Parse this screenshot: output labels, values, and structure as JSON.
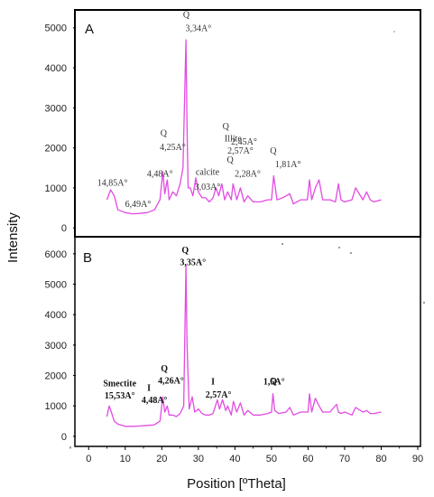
{
  "figure": {
    "ylabel": "Intensity",
    "xlabel": "Position [ºTheta]"
  },
  "chart_data": [
    {
      "type": "line",
      "panel": "A",
      "color": "#e24be2",
      "xlim": [
        -5,
        90
      ],
      "ylim": [
        -200,
        5400
      ],
      "yticks": [
        0,
        1000,
        2000,
        3000,
        4000,
        5000
      ],
      "x": [
        5,
        6,
        7,
        8,
        10,
        12,
        14,
        16,
        18,
        19.5,
        20.3,
        20.8,
        21.5,
        22,
        23,
        24,
        25,
        25.8,
        26.6,
        26.9,
        27.2,
        27.8,
        28.5,
        29.3,
        30,
        31,
        32,
        33,
        34,
        34.8,
        35.6,
        36.4,
        37.2,
        38,
        39,
        39.5,
        40.5,
        41.5,
        42.5,
        43.5,
        45,
        47,
        49,
        50,
        50.6,
        51.5,
        53,
        55,
        56,
        58,
        59.8,
        60.4,
        61,
        62,
        63,
        64,
        66,
        67.5,
        68.3,
        69,
        70,
        72,
        73,
        75,
        76,
        77,
        78,
        80
      ],
      "y": [
        700,
        950,
        800,
        450,
        380,
        350,
        360,
        380,
        450,
        700,
        1400,
        850,
        1200,
        700,
        900,
        800,
        1100,
        1500,
        4700,
        2500,
        1000,
        1000,
        800,
        1250,
        900,
        750,
        750,
        650,
        750,
        1000,
        800,
        1100,
        700,
        900,
        700,
        1100,
        700,
        1000,
        650,
        800,
        650,
        650,
        700,
        700,
        1300,
        700,
        750,
        850,
        600,
        700,
        700,
        1200,
        700,
        1000,
        1200,
        700,
        700,
        650,
        1100,
        700,
        650,
        700,
        1000,
        700,
        900,
        700,
        650,
        700
      ],
      "annotations": [
        {
          "text": "14,85A°",
          "x": 6.5,
          "y": 1050
        },
        {
          "text": "6,49A°",
          "x": 13.5,
          "y": 520
        },
        {
          "text": "4,48A°",
          "x": 19.5,
          "y": 1280
        },
        {
          "text": "Q",
          "x": 20.5,
          "y": 2290
        },
        {
          "text": "4,25A°",
          "x": 23,
          "y": 1940
        },
        {
          "text": "Q",
          "x": 26.7,
          "y": 5250
        },
        {
          "text": "3,34A°",
          "x": 30,
          "y": 4910
        },
        {
          "text": "calcite",
          "x": 32.5,
          "y": 1320
        },
        {
          "text": "3,03A°",
          "x": 32.5,
          "y": 950
        },
        {
          "text": "Illite",
          "x": 39.5,
          "y": 2160
        },
        {
          "text": "2,57A°",
          "x": 41.5,
          "y": 1860
        },
        {
          "text": "Q",
          "x": 37.5,
          "y": 2470
        },
        {
          "text": "2,45A°",
          "x": 42.5,
          "y": 2080
        },
        {
          "text": "Q",
          "x": 38.7,
          "y": 1630
        },
        {
          "text": "2,28A°",
          "x": 43.5,
          "y": 1280
        },
        {
          "text": "Q",
          "x": 50.5,
          "y": 1860
        },
        {
          "text": "1,81A°",
          "x": 54.5,
          "y": 1520
        }
      ]
    },
    {
      "type": "line",
      "panel": "B",
      "color": "#e24be2",
      "xlim": [
        -5,
        90
      ],
      "ylim": [
        -300,
        6500
      ],
      "yticks": [
        0,
        1000,
        2000,
        3000,
        4000,
        5000,
        6000
      ],
      "x": [
        5,
        5.6,
        6.2,
        7,
        8,
        10,
        12,
        14,
        16,
        18,
        19.5,
        20.3,
        20.8,
        21.5,
        22,
        23,
        24,
        25,
        26,
        26.6,
        26.9,
        27.5,
        28.3,
        29,
        30,
        31,
        32,
        33,
        34,
        35.2,
        35.8,
        36.6,
        37.5,
        38,
        39,
        39.6,
        40.5,
        41.5,
        42.5,
        43.5,
        45,
        47,
        49,
        50,
        50.4,
        50.9,
        52,
        54,
        55,
        56,
        58,
        60,
        60.4,
        61,
        62,
        63,
        64,
        66,
        67.8,
        68.3,
        69,
        70,
        72,
        73,
        75,
        76,
        77,
        78,
        80
      ],
      "y": [
        650,
        1000,
        800,
        500,
        400,
        330,
        330,
        340,
        360,
        380,
        500,
        1300,
        800,
        1000,
        700,
        700,
        650,
        750,
        1000,
        5600,
        3000,
        900,
        1300,
        800,
        900,
        750,
        700,
        700,
        750,
        1200,
        900,
        1200,
        850,
        1000,
        700,
        1150,
        800,
        1100,
        700,
        850,
        700,
        700,
        750,
        800,
        1400,
        850,
        750,
        800,
        950,
        700,
        800,
        800,
        1400,
        800,
        1250,
        1000,
        800,
        800,
        1050,
        800,
        750,
        800,
        700,
        950,
        800,
        850,
        750,
        750,
        800
      ],
      "annotations": [
        {
          "text": "Q",
          "x": 26.4,
          "y": 6030
        },
        {
          "text": "3,35A°",
          "x": 28.5,
          "y": 5620
        },
        {
          "text": "Smectite",
          "x": 8.5,
          "y": 1650
        },
        {
          "text": "15,53A°",
          "x": 8.5,
          "y": 1250
        },
        {
          "text": "I",
          "x": 16.5,
          "y": 1500
        },
        {
          "text": "4,48A°",
          "x": 18,
          "y": 1090
        },
        {
          "text": "Q",
          "x": 20.7,
          "y": 2140
        },
        {
          "text": "4,26A°",
          "x": 22.5,
          "y": 1730
        },
        {
          "text": "I",
          "x": 34,
          "y": 1700
        },
        {
          "text": "2,57A°",
          "x": 35.5,
          "y": 1270
        },
        {
          "text": "1,5A°",
          "x": 50.7,
          "y": 1700
        },
        {
          "text": "Q",
          "x": 50.5,
          "y": 1720
        }
      ]
    }
  ]
}
